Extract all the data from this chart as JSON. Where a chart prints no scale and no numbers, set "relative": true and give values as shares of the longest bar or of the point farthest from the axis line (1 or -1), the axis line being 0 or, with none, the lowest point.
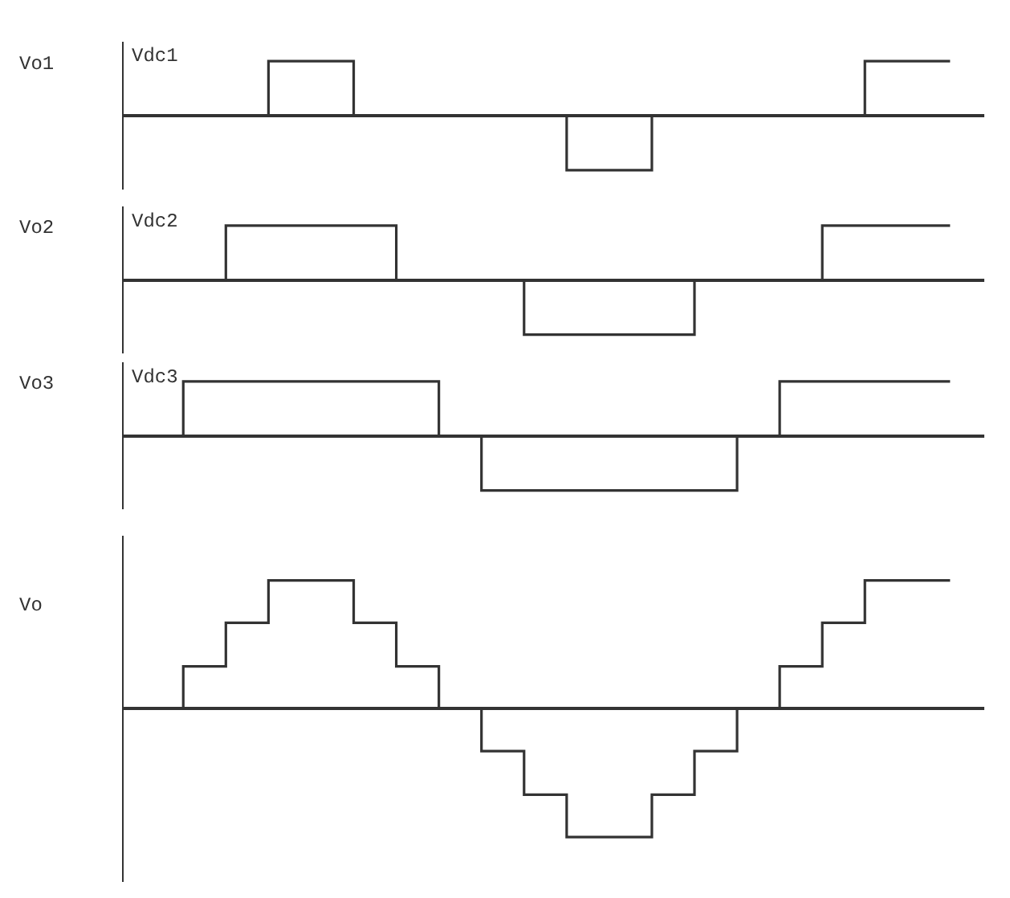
{
  "chart_data": [
    {
      "type": "step",
      "relative": true,
      "ylabel": "Vo1",
      "annotations": [
        "Vdc1"
      ],
      "marker": "none",
      "line_style": "solid",
      "categories": [
        null,
        null,
        null,
        null,
        null,
        null,
        null,
        null,
        null,
        null,
        null,
        null,
        null,
        null,
        null,
        null,
        null,
        null,
        null,
        null
      ],
      "series": [
        {
          "color": "#333333",
          "values": [
            0,
            0,
            0,
            1,
            1,
            0,
            0,
            0,
            0,
            0,
            -1,
            -1,
            0,
            0,
            0,
            0,
            0,
            1,
            1,
            1
          ]
        }
      ]
    },
    {
      "type": "step",
      "relative": true,
      "ylabel": "Vo2",
      "annotations": [
        "Vdc2"
      ],
      "marker": "none",
      "line_style": "solid",
      "categories": [
        null,
        null,
        null,
        null,
        null,
        null,
        null,
        null,
        null,
        null,
        null,
        null,
        null,
        null,
        null,
        null,
        null,
        null,
        null,
        null
      ],
      "series": [
        {
          "color": "#333333",
          "values": [
            0,
            0,
            1,
            1,
            1,
            1,
            0,
            0,
            0,
            -1,
            -1,
            -1,
            -1,
            0,
            0,
            0,
            1,
            1,
            1,
            1
          ]
        }
      ]
    },
    {
      "type": "step",
      "relative": true,
      "ylabel": "Vo3",
      "annotations": [
        "Vdc3"
      ],
      "marker": "none",
      "line_style": "solid",
      "categories": [
        null,
        null,
        null,
        null,
        null,
        null,
        null,
        null,
        null,
        null,
        null,
        null,
        null,
        null,
        null,
        null,
        null,
        null,
        null,
        null
      ],
      "series": [
        {
          "color": "#333333",
          "values": [
            0,
            1,
            1,
            1,
            1,
            1,
            1,
            0,
            -1,
            -1,
            -1,
            -1,
            -1,
            -1,
            0,
            1,
            1,
            1,
            1,
            1
          ]
        }
      ]
    },
    {
      "type": "step",
      "relative": true,
      "ylabel": "Vo",
      "marker": "none",
      "line_style": "solid",
      "categories": [
        null,
        null,
        null,
        null,
        null,
        null,
        null,
        null,
        null,
        null,
        null,
        null,
        null,
        null,
        null,
        null,
        null,
        null,
        null,
        null
      ],
      "series": [
        {
          "color": "#333333",
          "values": [
            0,
            0.33,
            0.67,
            1,
            1,
            0.67,
            0.33,
            0,
            -0.33,
            -0.67,
            -1,
            -1,
            -0.67,
            -0.33,
            0,
            0.33,
            0.67,
            1,
            1,
            1
          ]
        }
      ]
    }
  ]
}
